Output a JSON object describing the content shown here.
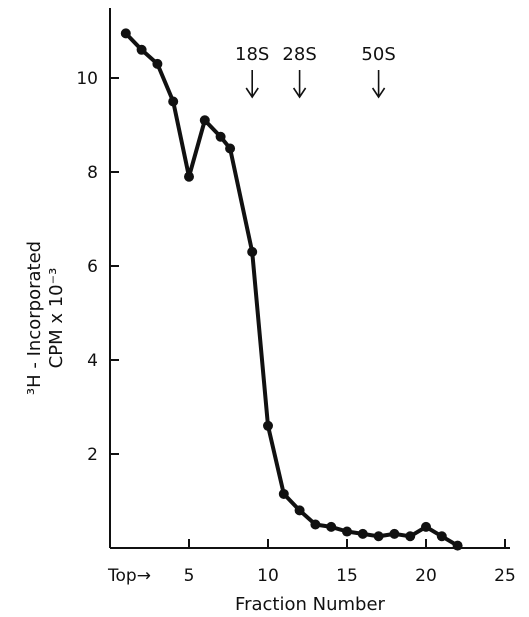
{
  "chart_data": {
    "type": "line",
    "title": "",
    "xlabel": "Fraction Number",
    "ylabel_line1": "³H - Incorporated",
    "ylabel_line2": "CPM x 10⁻³",
    "xlim": [
      0,
      25
    ],
    "ylim": [
      0,
      11.5
    ],
    "x_ticks": [
      5,
      10,
      15,
      20,
      25
    ],
    "y_ticks": [
      2,
      4,
      6,
      8,
      10
    ],
    "x_start_label": "Top→",
    "grid": false,
    "series": [
      {
        "x": [
          1,
          2,
          3,
          4,
          5,
          6,
          7,
          7.6,
          9,
          10,
          11,
          12,
          13,
          14,
          15,
          16,
          17,
          18,
          19,
          20,
          21,
          22
        ],
        "y": [
          10.95,
          10.6,
          10.3,
          9.5,
          7.9,
          9.1,
          8.75,
          8.5,
          6.3,
          2.6,
          1.15,
          0.8,
          0.5,
          0.45,
          0.35,
          0.3,
          0.25,
          0.3,
          0.25,
          0.45,
          0.25,
          0.05
        ]
      }
    ],
    "markers": [
      {
        "label": "18S",
        "x": 9
      },
      {
        "label": "28S",
        "x": 12
      },
      {
        "label": "50S",
        "x": 17
      }
    ]
  },
  "colors": {
    "ink": "#111111",
    "background": "#ffffff"
  }
}
